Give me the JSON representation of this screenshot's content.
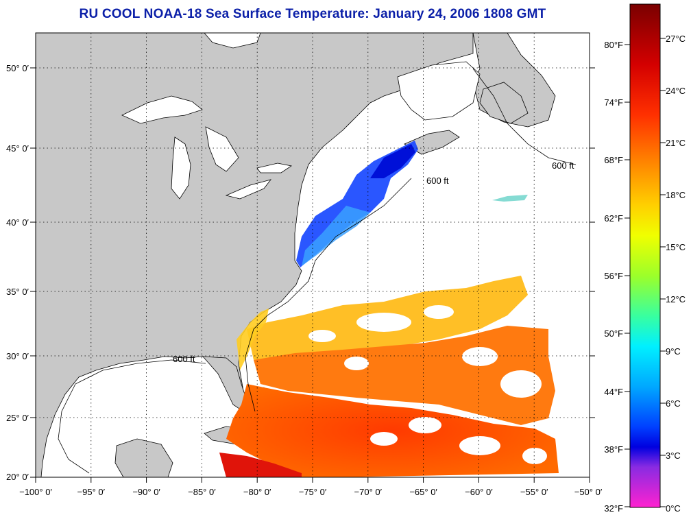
{
  "title": "RU COOL  NOAA-18  Sea Surface Temperature:  January 24, 2006 1808 GMT",
  "map": {
    "lon_labels": [
      "−100° 0′",
      "−95° 0′",
      "−90° 0′",
      "−85° 0′",
      "−80° 0′",
      "−75° 0′",
      "−70° 0′",
      "−65° 0′",
      "−60° 0′",
      "−55° 0′",
      "−50° 0′"
    ],
    "lat_labels": [
      "50° 0′",
      "45° 0′",
      "40° 0′",
      "35° 0′",
      "30° 0′",
      "25° 0′",
      "20° 0′"
    ],
    "contour_label": "600 ft",
    "land_color": "#c8c8c8",
    "ocean_color": "#ffffff"
  },
  "colorbar": {
    "fahrenheit_labels": [
      "80°F",
      "74°F",
      "68°F",
      "62°F",
      "56°F",
      "50°F",
      "44°F",
      "38°F",
      "32°F"
    ],
    "celsius_labels": [
      "27°C",
      "24°C",
      "21°C",
      "18°C",
      "15°C",
      "12°C",
      "9°C",
      "6°C",
      "3°C",
      "0°C"
    ],
    "colors": [
      "#7a0000",
      "#d40000",
      "#ff2a00",
      "#ff7a00",
      "#ffc400",
      "#f0ff00",
      "#9cff2a",
      "#38ffa0",
      "#00f0ff",
      "#00a8ff",
      "#0040ff",
      "#0000e0",
      "#8a2be2",
      "#ff22d0"
    ]
  }
}
